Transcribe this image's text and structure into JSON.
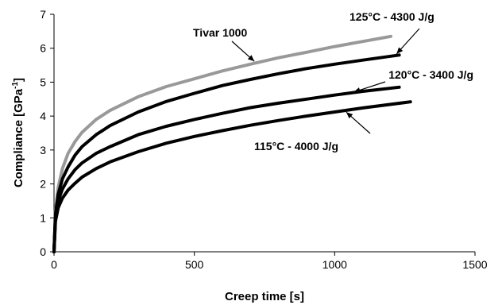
{
  "chart_data": {
    "type": "line",
    "xlabel": "Creep time [s]",
    "ylabel": {
      "text": "Compliance [GPa",
      "sup": "-1",
      "suffix": "]"
    },
    "xlim": [
      0,
      1500
    ],
    "ylim": [
      0,
      7
    ],
    "xticks": [
      0,
      500,
      1000,
      1500
    ],
    "yticks": [
      0,
      1,
      2,
      3,
      4,
      5,
      6,
      7
    ],
    "grid": false,
    "legend": "none",
    "series": [
      {
        "name": "Tivar 1000",
        "color": "#999999",
        "x": [
          0,
          5,
          15,
          30,
          50,
          75,
          100,
          150,
          200,
          300,
          400,
          500,
          600,
          700,
          800,
          900,
          1000,
          1100,
          1200
        ],
        "y": [
          0,
          1.2,
          1.9,
          2.45,
          2.9,
          3.25,
          3.52,
          3.9,
          4.17,
          4.57,
          4.87,
          5.1,
          5.33,
          5.53,
          5.72,
          5.88,
          6.05,
          6.2,
          6.35
        ]
      },
      {
        "name": "125°C - 4300 J/g",
        "color": "#000000",
        "x": [
          0,
          5,
          15,
          30,
          50,
          75,
          100,
          150,
          200,
          300,
          400,
          500,
          600,
          700,
          800,
          900,
          1000,
          1100,
          1230
        ],
        "y": [
          0,
          1.1,
          1.7,
          2.15,
          2.5,
          2.85,
          3.1,
          3.45,
          3.72,
          4.12,
          4.43,
          4.67,
          4.9,
          5.08,
          5.25,
          5.4,
          5.53,
          5.65,
          5.8
        ]
      },
      {
        "name": "120°C - 3400 J/g",
        "color": "#000000",
        "x": [
          0,
          5,
          15,
          30,
          50,
          75,
          100,
          150,
          200,
          300,
          400,
          500,
          600,
          700,
          800,
          900,
          1000,
          1100,
          1230
        ],
        "y": [
          0,
          1.0,
          1.5,
          1.85,
          2.15,
          2.42,
          2.62,
          2.9,
          3.1,
          3.45,
          3.7,
          3.9,
          4.08,
          4.25,
          4.38,
          4.5,
          4.62,
          4.73,
          4.85
        ]
      },
      {
        "name": "115°C - 4000 J/g",
        "color": "#000000",
        "x": [
          0,
          5,
          15,
          30,
          50,
          75,
          100,
          150,
          200,
          300,
          400,
          500,
          600,
          700,
          800,
          900,
          1000,
          1100,
          1270
        ],
        "y": [
          0,
          0.9,
          1.3,
          1.58,
          1.82,
          2.02,
          2.2,
          2.45,
          2.65,
          2.95,
          3.2,
          3.4,
          3.57,
          3.73,
          3.87,
          4.0,
          4.12,
          4.24,
          4.42
        ]
      }
    ],
    "annotations": [
      {
        "text": "Tivar 1000",
        "series": 0,
        "point_x": 720
      },
      {
        "text": "125°C - 4300 J/g",
        "series": 1,
        "point_x": 1215
      },
      {
        "text": "120°C - 3400 J/g",
        "series": 2,
        "point_x": 1060
      },
      {
        "text": "115°C - 4000 J/g",
        "series": 3,
        "point_x": 1035
      }
    ]
  }
}
